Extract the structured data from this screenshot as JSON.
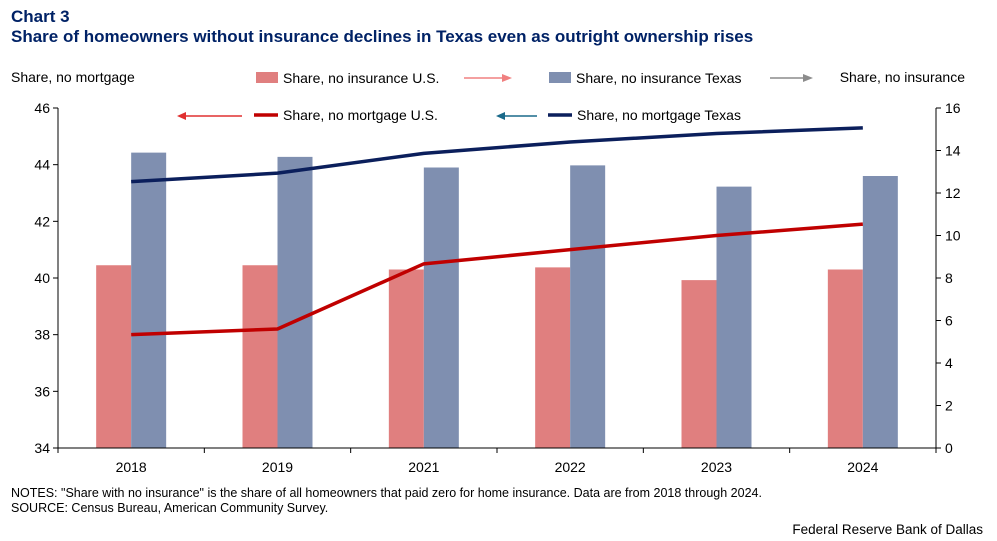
{
  "header": {
    "chart_label": "Chart 3",
    "title": "Share of homeowners without insurance declines in Texas even as outright ownership rises"
  },
  "notes": {
    "line1": "NOTES: \"Share with no insurance\" is the share of all homeowners that paid zero for home insurance. Data are from 2018 through 2024.",
    "line2": "SOURCE: Census Bureau, American Community Survey."
  },
  "credit": "Federal Reserve Bank of Dallas",
  "colors": {
    "us_insurance": "#e07f7f",
    "tx_insurance": "#7f8fb0",
    "us_mortgage": "#c00000",
    "tx_mortgage": "#0b1f5c",
    "axis": "#000000"
  },
  "chart_data": {
    "type": "bar",
    "title": "Share of homeowners without insurance declines in Texas even as outright ownership rises",
    "categories": [
      "2018",
      "2019",
      "2021",
      "2022",
      "2023",
      "2024"
    ],
    "left_axis": {
      "label": "Share, no mortgage",
      "ylim": [
        34,
        46
      ],
      "ticks": [
        "34",
        "36",
        "38",
        "40",
        "42",
        "44",
        "46"
      ]
    },
    "right_axis": {
      "label": "Share, no insurance",
      "ylim": [
        0,
        16
      ],
      "ticks": [
        "0",
        "2",
        "4",
        "6",
        "8",
        "10",
        "12",
        "14",
        "16"
      ]
    },
    "series": [
      {
        "name": "Share, no insurance U.S.",
        "type": "bar",
        "axis": "right",
        "values": [
          8.6,
          8.6,
          8.4,
          8.5,
          7.9,
          8.4
        ]
      },
      {
        "name": "Share, no insurance Texas",
        "type": "bar",
        "axis": "right",
        "values": [
          13.9,
          13.7,
          13.2,
          13.3,
          12.3,
          12.8
        ]
      },
      {
        "name": "Share, no mortgage U.S.",
        "type": "line",
        "axis": "left",
        "values": [
          38.0,
          38.2,
          40.5,
          41.0,
          41.5,
          41.9
        ]
      },
      {
        "name": "Share, no mortgage Texas",
        "type": "line",
        "axis": "left",
        "values": [
          43.4,
          43.7,
          44.4,
          44.8,
          45.1,
          45.3
        ]
      }
    ],
    "grid": false,
    "legend": "top"
  }
}
